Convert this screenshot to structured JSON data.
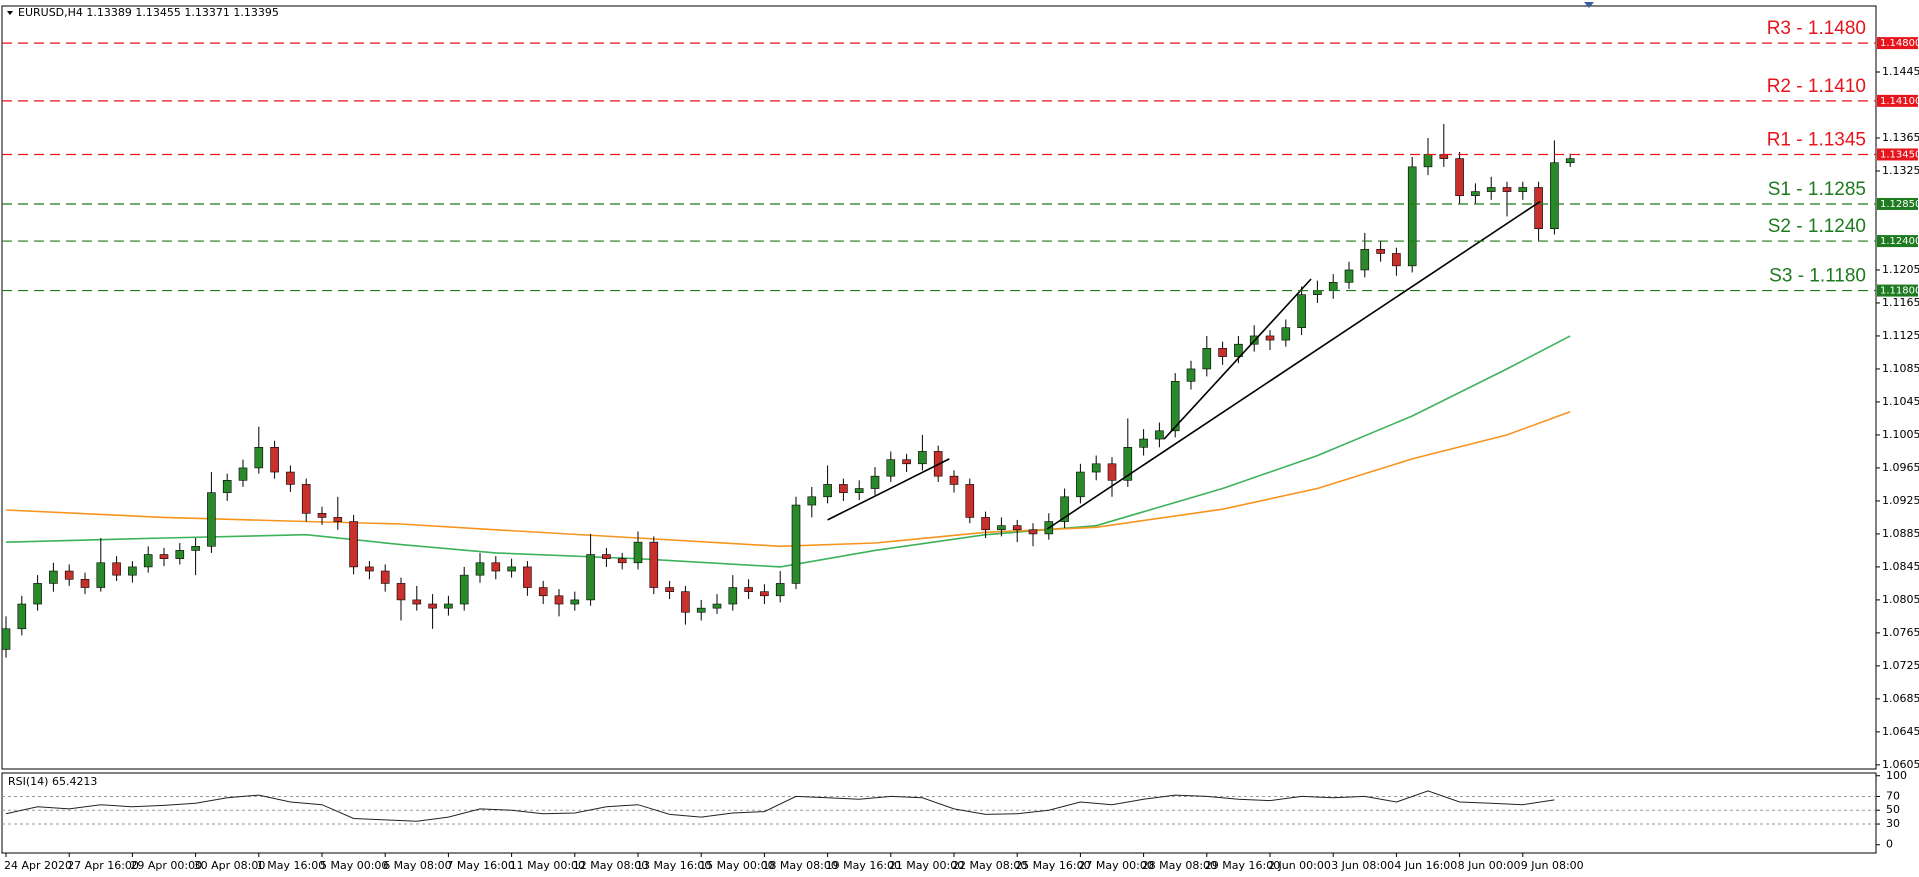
{
  "chart_data": {
    "type": "candlestick",
    "title": "EURUSD,H4 1.13389 1.13455 1.13371 1.13395",
    "categories": [
      "24 Apr 2020",
      null,
      null,
      null,
      "27 Apr 16:00",
      null,
      null,
      null,
      "29 Apr 00:00",
      null,
      null,
      null,
      "30 Apr 08:00",
      null,
      null,
      null,
      "1 May 16:00",
      null,
      null,
      null,
      "5 May 00:00",
      null,
      null,
      null,
      "6 May 08:00",
      null,
      null,
      null,
      "7 May 16:00",
      null,
      null,
      null,
      "11 May 00:00",
      null,
      null,
      null,
      "12 May 08:00",
      null,
      null,
      null,
      "13 May 16:00",
      null,
      null,
      null,
      "15 May 00:00",
      null,
      null,
      null,
      "18 May 08:00",
      null,
      null,
      null,
      "19 May 16:00",
      null,
      null,
      null,
      "21 May 00:00",
      null,
      null,
      null,
      "22 May 08:00",
      null,
      null,
      null,
      "25 May 16:00",
      null,
      null,
      null,
      "27 May 00:00",
      null,
      null,
      null,
      "28 May 08:00",
      null,
      null,
      null,
      "29 May 16:00",
      null,
      null,
      null,
      "2 Jun 00:00",
      null,
      null,
      null,
      "3 Jun 08:00",
      null,
      null,
      null,
      "4 Jun 16:00",
      null,
      null,
      null,
      "8 Jun 00:00",
      null,
      null,
      null,
      "9 Jun 08:00",
      null,
      null,
      null
    ],
    "candles": [
      [
        1.0745,
        1.0785,
        1.0735,
        1.077
      ],
      [
        1.077,
        1.081,
        1.0762,
        1.08
      ],
      [
        1.08,
        1.0835,
        1.0792,
        1.0825
      ],
      [
        1.0825,
        1.085,
        1.0815,
        1.084
      ],
      [
        1.084,
        1.0848,
        1.0822,
        1.083
      ],
      [
        1.083,
        1.0838,
        1.0812,
        1.082
      ],
      [
        1.082,
        1.088,
        1.0815,
        1.085
      ],
      [
        1.085,
        1.0858,
        1.0828,
        1.0835
      ],
      [
        1.0835,
        1.0852,
        1.0826,
        1.0845
      ],
      [
        1.0845,
        1.087,
        1.0838,
        1.086
      ],
      [
        1.086,
        1.0868,
        1.0846,
        1.0855
      ],
      [
        1.0855,
        1.0874,
        1.0848,
        1.0865
      ],
      [
        1.0865,
        1.088,
        1.0835,
        1.087
      ],
      [
        1.087,
        1.096,
        1.0862,
        1.0935
      ],
      [
        1.0935,
        1.0958,
        1.0925,
        1.095
      ],
      [
        1.095,
        1.0975,
        1.0942,
        1.0965
      ],
      [
        1.0965,
        1.1015,
        1.0958,
        1.099
      ],
      [
        1.099,
        1.0998,
        1.0952,
        1.096
      ],
      [
        1.096,
        1.0968,
        1.0936,
        1.0945
      ],
      [
        1.0945,
        1.0952,
        1.09,
        1.091
      ],
      [
        1.091,
        1.0918,
        1.0896,
        1.0905
      ],
      [
        1.0905,
        1.093,
        1.089,
        1.09
      ],
      [
        1.09,
        1.0908,
        1.0836,
        1.0845
      ],
      [
        1.0845,
        1.0852,
        1.083,
        1.084
      ],
      [
        1.084,
        1.0848,
        1.0815,
        1.0825
      ],
      [
        1.0825,
        1.0832,
        1.078,
        1.0805
      ],
      [
        1.0805,
        1.0822,
        1.0792,
        1.08
      ],
      [
        1.08,
        1.0812,
        1.077,
        1.0795
      ],
      [
        1.0795,
        1.081,
        1.0786,
        1.08
      ],
      [
        1.08,
        1.0845,
        1.0792,
        1.0835
      ],
      [
        1.0835,
        1.0862,
        1.0826,
        1.085
      ],
      [
        1.085,
        1.0858,
        1.083,
        1.084
      ],
      [
        1.084,
        1.0855,
        1.0832,
        1.0845
      ],
      [
        1.0845,
        1.0852,
        1.081,
        1.082
      ],
      [
        1.082,
        1.0828,
        1.08,
        1.081
      ],
      [
        1.081,
        1.0818,
        1.0785,
        1.08
      ],
      [
        1.08,
        1.0815,
        1.0792,
        1.0805
      ],
      [
        1.0805,
        1.0885,
        1.0798,
        1.086
      ],
      [
        1.086,
        1.0868,
        1.0845,
        1.0855
      ],
      [
        1.0855,
        1.0862,
        1.0842,
        1.085
      ],
      [
        1.085,
        1.0888,
        1.0842,
        1.0875
      ],
      [
        1.0875,
        1.0882,
        1.0812,
        1.082
      ],
      [
        1.082,
        1.0828,
        1.0806,
        1.0815
      ],
      [
        1.0815,
        1.0822,
        1.0775,
        1.079
      ],
      [
        1.079,
        1.0805,
        1.078,
        1.0795
      ],
      [
        1.0795,
        1.0812,
        1.0788,
        1.08
      ],
      [
        1.08,
        1.0835,
        1.0792,
        1.082
      ],
      [
        1.082,
        1.083,
        1.0806,
        1.0815
      ],
      [
        1.0815,
        1.0824,
        1.08,
        1.081
      ],
      [
        1.081,
        1.084,
        1.0802,
        1.0825
      ],
      [
        1.0825,
        1.093,
        1.0818,
        1.092
      ],
      [
        1.092,
        1.0942,
        1.0905,
        1.093
      ],
      [
        1.093,
        1.0968,
        1.0922,
        1.0945
      ],
      [
        1.0945,
        1.0952,
        1.0925,
        1.0935
      ],
      [
        1.0935,
        1.095,
        1.0926,
        1.094
      ],
      [
        1.094,
        1.0966,
        1.0932,
        1.0955
      ],
      [
        1.0955,
        1.0985,
        1.0948,
        1.0975
      ],
      [
        1.0975,
        1.0982,
        1.096,
        1.097
      ],
      [
        1.097,
        1.1005,
        1.0962,
        1.0985
      ],
      [
        1.0985,
        1.0992,
        1.0948,
        1.0955
      ],
      [
        1.0955,
        1.0962,
        1.0935,
        1.0945
      ],
      [
        1.0945,
        1.0952,
        1.0898,
        1.0905
      ],
      [
        1.0905,
        1.0912,
        1.088,
        1.089
      ],
      [
        1.089,
        1.0905,
        1.0882,
        1.0895
      ],
      [
        1.0895,
        1.0902,
        1.0875,
        1.089
      ],
      [
        1.089,
        1.0898,
        1.087,
        1.0885
      ],
      [
        1.0885,
        1.091,
        1.0878,
        1.09
      ],
      [
        1.09,
        1.094,
        1.0892,
        1.093
      ],
      [
        1.093,
        1.097,
        1.0922,
        1.096
      ],
      [
        1.096,
        1.098,
        1.095,
        1.097
      ],
      [
        1.097,
        1.0978,
        1.093,
        1.095
      ],
      [
        1.095,
        1.1025,
        1.0942,
        1.099
      ],
      [
        1.099,
        1.1012,
        1.098,
        1.1
      ],
      [
        1.1,
        1.102,
        1.099,
        1.101
      ],
      [
        1.101,
        1.108,
        1.1002,
        1.107
      ],
      [
        1.107,
        1.1095,
        1.106,
        1.1085
      ],
      [
        1.1085,
        1.1125,
        1.1076,
        1.111
      ],
      [
        1.111,
        1.1118,
        1.109,
        1.11
      ],
      [
        1.11,
        1.1125,
        1.1092,
        1.1115
      ],
      [
        1.1115,
        1.1138,
        1.1106,
        1.1125
      ],
      [
        1.1125,
        1.1132,
        1.1108,
        1.112
      ],
      [
        1.112,
        1.1145,
        1.1112,
        1.1135
      ],
      [
        1.1135,
        1.1185,
        1.1126,
        1.1175
      ],
      [
        1.1175,
        1.1192,
        1.1165,
        1.118
      ],
      [
        1.118,
        1.12,
        1.117,
        1.119
      ],
      [
        1.119,
        1.1215,
        1.1182,
        1.1205
      ],
      [
        1.1205,
        1.125,
        1.1196,
        1.123
      ],
      [
        1.123,
        1.124,
        1.1215,
        1.1225
      ],
      [
        1.1225,
        1.1232,
        1.1198,
        1.121
      ],
      [
        1.121,
        1.1342,
        1.1202,
        1.133
      ],
      [
        1.133,
        1.1365,
        1.132,
        1.1345
      ],
      [
        1.1345,
        1.1382,
        1.133,
        1.134
      ],
      [
        1.134,
        1.1348,
        1.1285,
        1.1295
      ],
      [
        1.1295,
        1.131,
        1.1285,
        1.13
      ],
      [
        1.13,
        1.1318,
        1.129,
        1.1305
      ],
      [
        1.1305,
        1.1312,
        1.127,
        1.13
      ],
      [
        1.13,
        1.1312,
        1.129,
        1.1305
      ],
      [
        1.1305,
        1.1312,
        1.124,
        1.1255
      ],
      [
        1.1255,
        1.1362,
        1.1248,
        1.1335
      ],
      [
        1.1335,
        1.1346,
        1.133,
        1.134
      ]
    ],
    "up_color": "#2a8a2a",
    "down_color": "#c8312b",
    "ylim": [
      1.06,
      1.1525
    ],
    "yticks": [
      {
        "value": 1.1445,
        "label": "1.14450"
      },
      {
        "value": 1.1365,
        "label": "1.13650"
      },
      {
        "value": 1.1325,
        "label": "1.13250"
      },
      {
        "value": 1.1205,
        "label": "1.12050"
      },
      {
        "value": 1.1165,
        "label": "1.11650"
      },
      {
        "value": 1.1125,
        "label": "1.11250"
      },
      {
        "value": 1.1085,
        "label": "1.10850"
      },
      {
        "value": 1.1045,
        "label": "1.10450"
      },
      {
        "value": 1.1005,
        "label": "1.10050"
      },
      {
        "value": 1.0965,
        "label": "1.09650"
      },
      {
        "value": 1.0925,
        "label": "1.09250"
      },
      {
        "value": 1.0885,
        "label": "1.08850"
      },
      {
        "value": 1.0845,
        "label": "1.08450"
      },
      {
        "value": 1.0805,
        "label": "1.08050"
      },
      {
        "value": 1.0765,
        "label": "1.07650"
      },
      {
        "value": 1.0725,
        "label": "1.07250"
      },
      {
        "value": 1.0685,
        "label": "1.06850"
      },
      {
        "value": 1.0645,
        "label": "1.06450"
      },
      {
        "value": 1.0605,
        "label": "1.06050"
      }
    ],
    "levels": [
      {
        "label": "R3 - 1.1480",
        "value": 1.148,
        "tag": "1.14800",
        "color": "#e8141c"
      },
      {
        "label": "R2 - 1.1410",
        "value": 1.141,
        "tag": "1.14100",
        "color": "#e8141c"
      },
      {
        "label": "R1 - 1.1345",
        "value": 1.1345,
        "tag": "1.13450",
        "color": "#e8141c"
      },
      {
        "label": "S1 - 1.1285",
        "value": 1.1285,
        "tag": "1.12850",
        "color": "#1e7a1e"
      },
      {
        "label": "S2 - 1.1240",
        "value": 1.124,
        "tag": "1.12400",
        "color": "#1e7a1e"
      },
      {
        "label": "S3 - 1.1180",
        "value": 1.118,
        "tag": "1.11800",
        "color": "#1e7a1e"
      }
    ],
    "series": [
      {
        "color": "#3cb35a",
        "x": [
          0,
          10,
          19,
          25,
          31,
          40,
          49,
          55,
          62,
          69,
          77,
          83,
          89,
          95,
          99
        ],
        "values": [
          1.0875,
          1.088,
          1.0884,
          1.0872,
          1.0862,
          1.0855,
          1.0845,
          1.0865,
          1.0884,
          1.0895,
          1.094,
          1.098,
          1.1028,
          1.1085,
          1.1125
        ]
      },
      {
        "color": "#f7941d",
        "x": [
          0,
          10,
          19,
          25,
          31,
          40,
          49,
          55,
          62,
          69,
          77,
          83,
          89,
          95,
          99
        ],
        "values": [
          1.0914,
          1.0905,
          1.09,
          1.0897,
          1.089,
          1.088,
          1.087,
          1.0874,
          1.0887,
          1.0893,
          1.0915,
          1.094,
          1.0976,
          1.1005,
          1.1033
        ]
      }
    ],
    "trendlines": [
      {
        "x": [
          52,
          59.7
        ],
        "values": [
          1.0902,
          1.0976
        ]
      },
      {
        "x": [
          65.9,
          97.1
        ],
        "values": [
          1.0891,
          1.1288
        ]
      },
      {
        "x": [
          73.3,
          82.6
        ],
        "values": [
          1.1,
          1.1194
        ]
      }
    ],
    "rsi": {
      "label": "RSI(14) 65.4213",
      "color": "#222222",
      "ylim": [
        -12,
        104
      ],
      "yticks": [
        100,
        70,
        50,
        30,
        0
      ],
      "levels": [
        70,
        50,
        30
      ],
      "x": [
        0,
        2,
        4,
        6,
        8,
        10,
        12,
        14,
        16,
        18,
        20,
        22,
        24,
        26,
        28,
        30,
        32,
        34,
        36,
        38,
        40,
        42,
        44,
        46,
        48,
        50,
        52,
        54,
        56,
        58,
        60,
        62,
        64,
        66,
        68,
        70,
        72,
        74,
        76,
        78,
        80,
        82,
        84,
        86,
        88,
        90,
        92,
        94,
        96,
        98
      ],
      "values": [
        45,
        55,
        52,
        58,
        55,
        57,
        60,
        68,
        72,
        62,
        58,
        38,
        36,
        34,
        40,
        52,
        50,
        45,
        46,
        55,
        58,
        44,
        40,
        46,
        48,
        70,
        68,
        66,
        70,
        68,
        52,
        44,
        45,
        50,
        62,
        58,
        66,
        72,
        70,
        66,
        64,
        70,
        68,
        70,
        62,
        78,
        62,
        60,
        58,
        65
      ]
    }
  }
}
